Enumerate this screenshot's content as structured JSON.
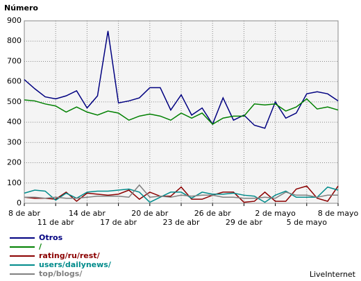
{
  "chart_data": {
    "type": "line",
    "title": "Número",
    "source": "LiveInternet",
    "categories": [
      "8 de abr",
      null,
      null,
      "11 de abr",
      null,
      null,
      "14 de abr",
      null,
      null,
      "17 de abr",
      null,
      null,
      "20 de abr",
      null,
      null,
      "23 de abr",
      null,
      null,
      "26 de abr",
      null,
      null,
      "29 de abr",
      null,
      null,
      "2 de mayo",
      null,
      null,
      "5 de mayo",
      null,
      null,
      "8 de mayo"
    ],
    "ylim": [
      0,
      900
    ],
    "yticks": [
      0,
      100,
      200,
      300,
      400,
      500,
      600,
      700,
      800,
      900
    ],
    "grid": true,
    "series": [
      {
        "name": "Otros",
        "color": "#000080",
        "values": [
          610,
          565,
          525,
          515,
          530,
          555,
          470,
          530,
          850,
          495,
          505,
          520,
          570,
          570,
          460,
          535,
          435,
          470,
          390,
          520,
          410,
          435,
          385,
          370,
          500,
          420,
          445,
          540,
          550,
          540,
          505
        ]
      },
      {
        "name": "/",
        "color": "#008000",
        "values": [
          510,
          505,
          490,
          480,
          450,
          475,
          450,
          435,
          455,
          445,
          410,
          430,
          440,
          430,
          410,
          445,
          420,
          445,
          390,
          420,
          430,
          430,
          490,
          485,
          490,
          455,
          475,
          515,
          465,
          475,
          460
        ]
      },
      {
        "name": "rating/ru/rest/",
        "color": "#8b0000",
        "values": [
          30,
          25,
          25,
          20,
          55,
          10,
          50,
          45,
          40,
          45,
          65,
          20,
          55,
          35,
          35,
          80,
          20,
          20,
          40,
          55,
          55,
          5,
          10,
          55,
          10,
          10,
          70,
          85,
          25,
          10,
          85
        ]
      },
      {
        "name": "users/dailynews/",
        "color": "#008b8b",
        "values": [
          50,
          65,
          60,
          15,
          50,
          25,
          55,
          60,
          60,
          65,
          70,
          55,
          5,
          30,
          55,
          55,
          25,
          55,
          45,
          45,
          50,
          40,
          35,
          5,
          40,
          60,
          30,
          30,
          30,
          80,
          65
        ]
      },
      {
        "name": "top/blogs/",
        "color": "#808080",
        "values": [
          30,
          30,
          25,
          30,
          25,
          25,
          30,
          35,
          35,
          35,
          30,
          90,
          30,
          35,
          30,
          40,
          35,
          40,
          40,
          30,
          30,
          25,
          25,
          30,
          25,
          55,
          40,
          40,
          30,
          40,
          40
        ]
      }
    ]
  }
}
